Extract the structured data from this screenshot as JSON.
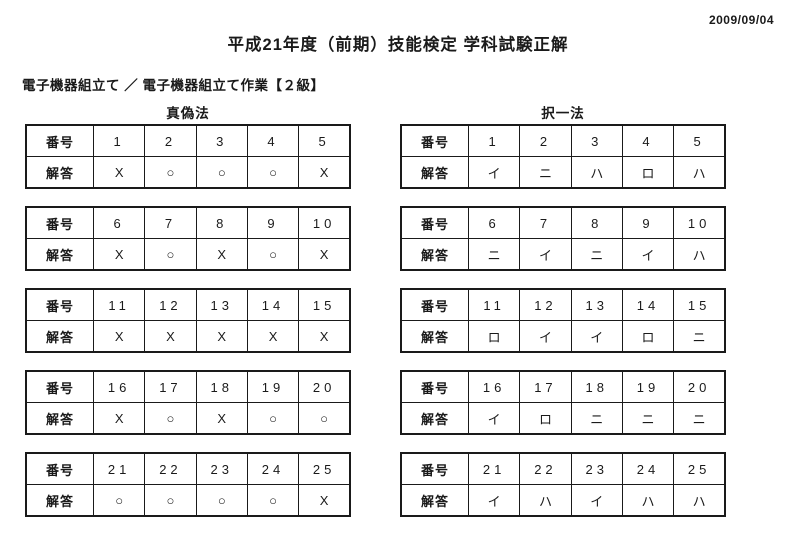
{
  "page": {
    "date": "2009/09/04",
    "title": "平成21年度（前期）技能検定 学科試験正解",
    "subtitle": "電子機器組立て ／ 電子機器組立て作業【２級】"
  },
  "labels": {
    "number": "番号",
    "answer": "解答"
  },
  "sections": [
    {
      "id": "true-false",
      "title": "真偽法",
      "tables": [
        {
          "numbers": [
            "1",
            "2",
            "3",
            "4",
            "5"
          ],
          "answers": [
            "X",
            "○",
            "○",
            "○",
            "X"
          ]
        },
        {
          "numbers": [
            "6",
            "7",
            "8",
            "9",
            "10"
          ],
          "answers": [
            "X",
            "○",
            "X",
            "○",
            "X"
          ]
        },
        {
          "numbers": [
            "11",
            "12",
            "13",
            "14",
            "15"
          ],
          "answers": [
            "X",
            "X",
            "X",
            "X",
            "X"
          ]
        },
        {
          "numbers": [
            "16",
            "17",
            "18",
            "19",
            "20"
          ],
          "answers": [
            "X",
            "○",
            "X",
            "○",
            "○"
          ]
        },
        {
          "numbers": [
            "21",
            "22",
            "23",
            "24",
            "25"
          ],
          "answers": [
            "○",
            "○",
            "○",
            "○",
            "X"
          ]
        }
      ]
    },
    {
      "id": "multiple-choice",
      "title": "択一法",
      "tables": [
        {
          "numbers": [
            "1",
            "2",
            "3",
            "4",
            "5"
          ],
          "answers": [
            "イ",
            "ニ",
            "ハ",
            "ロ",
            "ハ"
          ]
        },
        {
          "numbers": [
            "6",
            "7",
            "8",
            "9",
            "10"
          ],
          "answers": [
            "ニ",
            "イ",
            "ニ",
            "イ",
            "ハ"
          ]
        },
        {
          "numbers": [
            "11",
            "12",
            "13",
            "14",
            "15"
          ],
          "answers": [
            "ロ",
            "イ",
            "イ",
            "ロ",
            "ニ"
          ]
        },
        {
          "numbers": [
            "16",
            "17",
            "18",
            "19",
            "20"
          ],
          "answers": [
            "イ",
            "ロ",
            "ニ",
            "ニ",
            "ニ"
          ]
        },
        {
          "numbers": [
            "21",
            "22",
            "23",
            "24",
            "25"
          ],
          "answers": [
            "イ",
            "ハ",
            "イ",
            "ハ",
            "ハ"
          ]
        }
      ]
    }
  ]
}
